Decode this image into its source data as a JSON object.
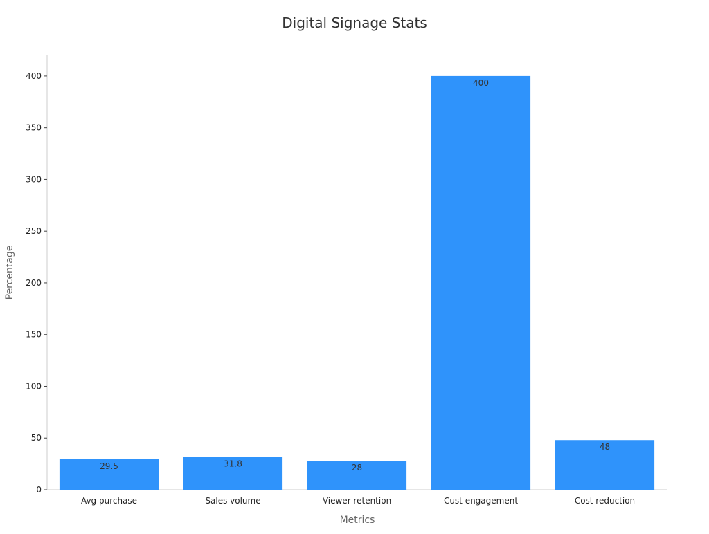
{
  "chart_data": {
    "type": "bar",
    "title": "Digital Signage Stats",
    "xlabel": "Metrics",
    "ylabel": "Percentage",
    "categories": [
      "Avg purchase",
      "Sales volume",
      "Viewer retention",
      "Cust engagement",
      "Cost reduction"
    ],
    "values": [
      29.5,
      31.8,
      28,
      400,
      48
    ],
    "value_labels": [
      "29.5",
      "31.8",
      "28",
      "400",
      "48"
    ],
    "ylim": [
      0,
      420
    ],
    "yticks": [
      0,
      50,
      100,
      150,
      200,
      250,
      300,
      350,
      400
    ],
    "grid": false,
    "legend": "none",
    "bar_color": "#2f93fb"
  }
}
